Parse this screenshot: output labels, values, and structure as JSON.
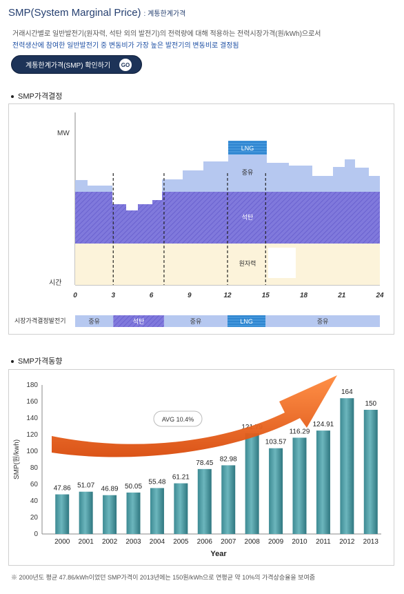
{
  "header": {
    "title": "SMP(System Marginal Price)",
    "subtitle": ": 계통한계가격",
    "desc_line1": "거래시간별로 일반발전기(원자력, 석탄 외의 발전기)의 전력량에 대해 적용하는 전력시장가격(원/kWh)으로서",
    "desc_line2": "전력생산에 참여한 일반발전기 중 변동비가 가장 높은 발전기의 변동비로 결정됨"
  },
  "go_button": {
    "label": "계통한계가격(SMP) 확인하기",
    "go": "GO"
  },
  "section1": {
    "title": "SMP가격결정"
  },
  "section2": {
    "title": "SMP가격동향"
  },
  "chart_data": [
    {
      "type": "area",
      "y_label": "MW",
      "x_axis_label": "시간",
      "x_ticks": [
        "0",
        "3",
        "6",
        "9",
        "12",
        "15",
        "18",
        "21",
        "24"
      ],
      "x_range": [
        0,
        24
      ],
      "layers": [
        {
          "name": "원자력",
          "label": "원자력",
          "color": "#fcf3da"
        },
        {
          "name": "석탄",
          "label": "석탄",
          "color": "#7b74d8"
        },
        {
          "name": "중유",
          "label": "중유",
          "color": "#b6c8f0"
        },
        {
          "name": "LNG",
          "label": "LNG",
          "color": "#3a8fd6"
        }
      ],
      "market_bar": {
        "label": "시장가격결정발전기",
        "segments": [
          {
            "label": "중유",
            "from": 0,
            "to": 3
          },
          {
            "label": "석탄",
            "from": 3,
            "to": 7
          },
          {
            "label": "중유",
            "from": 7,
            "to": 12
          },
          {
            "label": "LNG",
            "from": 12,
            "to": 15
          },
          {
            "label": "중유",
            "from": 15,
            "to": 24
          }
        ]
      }
    },
    {
      "type": "bar",
      "title": "",
      "xlabel": "Year",
      "ylabel": "SMP(원/kwh)",
      "ylim": [
        0,
        180
      ],
      "yticks": [
        0,
        20,
        40,
        60,
        80,
        100,
        120,
        140,
        160,
        180
      ],
      "categories": [
        "2000",
        "2001",
        "2002",
        "2003",
        "2004",
        "2005",
        "2006",
        "2007",
        "2008",
        "2009",
        "2010",
        "2011",
        "2012",
        "2013"
      ],
      "values": [
        47.86,
        51.07,
        46.89,
        50.05,
        55.48,
        61.21,
        78.45,
        82.98,
        121.79,
        103.57,
        116.29,
        124.91,
        164,
        150
      ],
      "value_labels": [
        "47.86",
        "51.07",
        "46.89",
        "50.05",
        "55.48",
        "61.21",
        "78.45",
        "82.98",
        "121.79",
        "103.57",
        "116.29",
        "124.91",
        "164",
        "150"
      ],
      "annotation": "AVG 10.4%",
      "bar_color": "#4e9ea6",
      "arrow_color": "#f26a1b"
    }
  ],
  "footnote": "※ 2000년도 평균 47.86/kWh이었던 SMP가격이 2013년에는 150원/kWh으로 연평균  약 10%의 가격상승율을 보여줌"
}
